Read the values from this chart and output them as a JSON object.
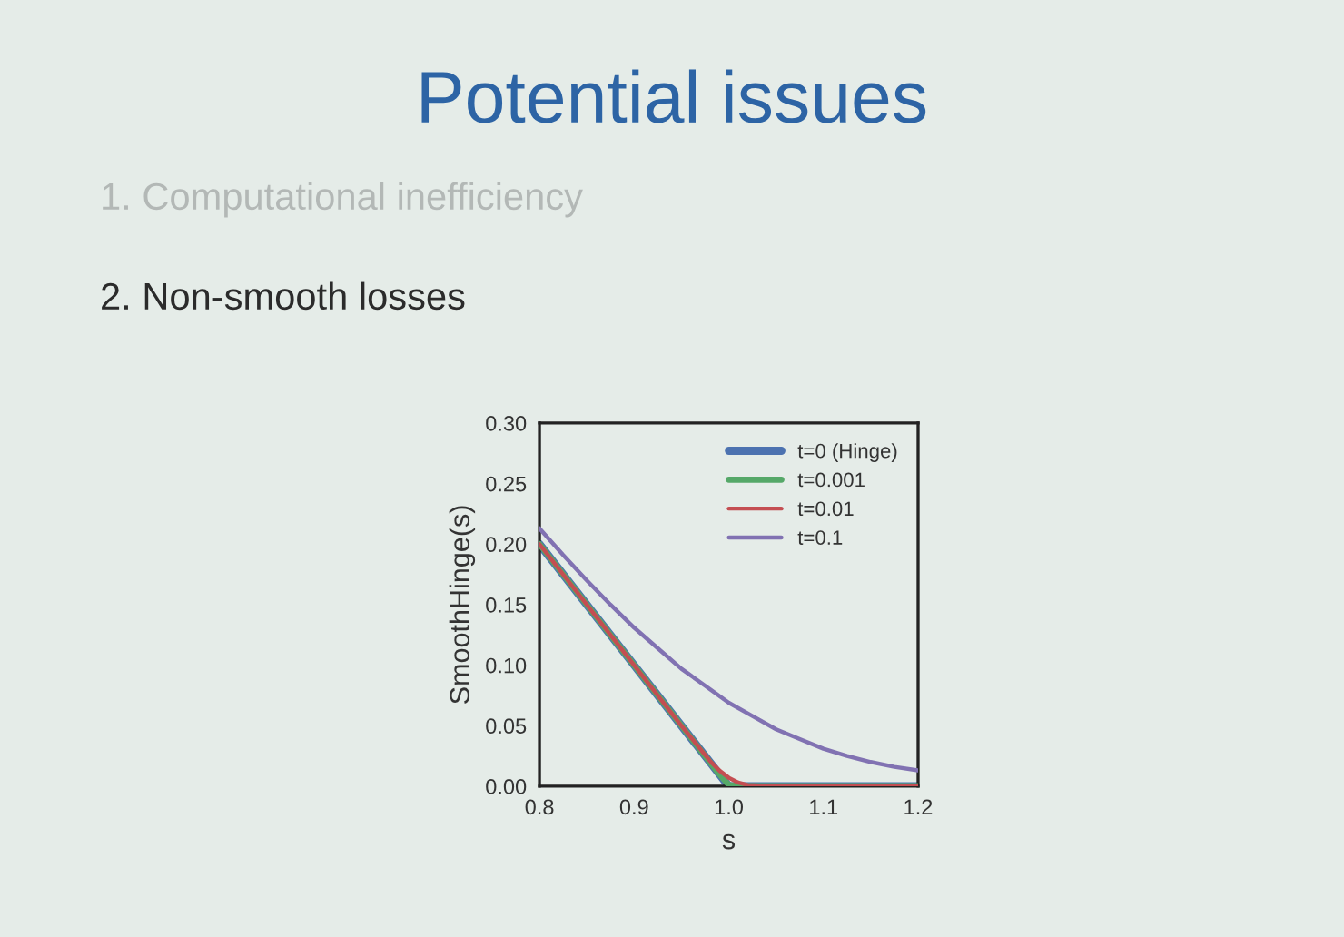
{
  "chart_data": {
    "type": "line",
    "title": "Potential issues",
    "annotations": [
      "1. Computational inefficiency",
      "2. Non-smooth losses"
    ],
    "xlabel": "s",
    "ylabel": "SmoothHinge(s)",
    "xlim": [
      0.8,
      1.2
    ],
    "xticks": [
      {
        "value": 0.8,
        "label": "0.8"
      },
      {
        "value": 0.9,
        "label": "0.9"
      },
      {
        "value": 1.0,
        "label": "1.0"
      },
      {
        "value": 1.1,
        "label": "1.1"
      },
      {
        "value": 1.2,
        "label": "1.2"
      }
    ],
    "ylim": [
      0,
      0.3
    ],
    "yticks": [
      {
        "value": 0,
        "label": "0.00"
      },
      {
        "value": 0.05,
        "label": "0.05"
      },
      {
        "value": 0.1,
        "label": "0.10"
      },
      {
        "value": 0.15,
        "label": "0.15"
      },
      {
        "value": 0.2,
        "label": "0.20"
      },
      {
        "value": 0.25,
        "label": "0.25"
      },
      {
        "value": 0.3,
        "label": "0.30"
      }
    ],
    "legend": "top right",
    "series": [
      {
        "name": "t=0 (Hinge)",
        "color": "#4c72b0",
        "x": [
          0.8,
          0.9,
          1.0,
          1.1,
          1.2
        ],
        "values": [
          0.2,
          0.1,
          0,
          0,
          0
        ]
      },
      {
        "name": "t=0.001",
        "color": "#55a868",
        "x": [
          0.8,
          0.9,
          0.99,
          1.0,
          1.01,
          1.1,
          1.2
        ],
        "values": [
          0.2,
          0.1,
          0.01,
          0.001,
          0,
          0,
          0
        ]
      },
      {
        "name": "t=0.01",
        "color": "#c44e52",
        "x": [
          0.8,
          0.9,
          0.95,
          0.98,
          0.99,
          1.0,
          1.01,
          1.02,
          1.05,
          1.1,
          1.2
        ],
        "values": [
          0.2,
          0.1,
          0.05,
          0.021,
          0.013,
          0.007,
          0.003,
          0.001,
          0,
          0,
          0
        ]
      },
      {
        "name": "t=0.1",
        "color": "#8172b2",
        "x": [
          0.8,
          0.825,
          0.85,
          0.875,
          0.9,
          0.925,
          0.95,
          0.975,
          1.0,
          1.025,
          1.05,
          1.075,
          1.1,
          1.125,
          1.15,
          1.175,
          1.2
        ],
        "values": [
          0.213,
          0.191,
          0.17,
          0.15,
          0.131,
          0.114,
          0.097,
          0.083,
          0.069,
          0.058,
          0.047,
          0.039,
          0.031,
          0.025,
          0.02,
          0.016,
          0.013
        ]
      }
    ]
  }
}
